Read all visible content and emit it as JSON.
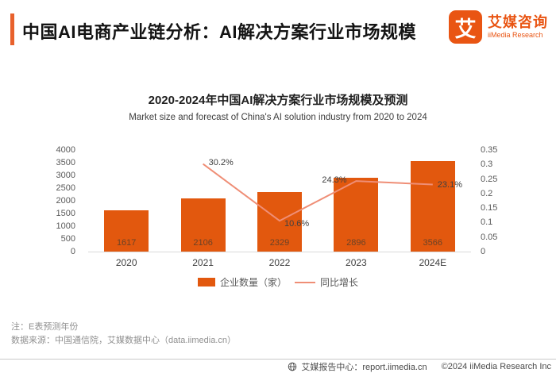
{
  "header": {
    "title": "中国AI电商产业链分析：AI解决方案行业市场规模",
    "logo": {
      "mark": "艾",
      "name_cn": "艾媒咨询",
      "name_en": "iiMedia Research"
    }
  },
  "chart_data": {
    "type": "bar+line combo",
    "title": "2020-2024年中国AI解决方案行业市场规模及预测",
    "subtitle": "Market size and forecast of China's AI solution industry from 2020 to 2024",
    "categories": [
      "2020",
      "2021",
      "2022",
      "2023",
      "2024E"
    ],
    "series": [
      {
        "name": "企业数量（家）",
        "type": "bar",
        "axis": "left",
        "color": "#e2580e",
        "values": [
          1617,
          2106,
          2329,
          2896,
          3566
        ]
      },
      {
        "name": "同比增长",
        "type": "line",
        "axis": "right",
        "color": "#ef8e76",
        "values": [
          null,
          0.302,
          0.106,
          0.243,
          0.231
        ],
        "point_labels": [
          null,
          "30.2%",
          "10.6%",
          "24.3%",
          "23.1%"
        ]
      }
    ],
    "left_axis": {
      "min": 0,
      "max": 4000,
      "step": 500
    },
    "right_axis": {
      "min": 0,
      "max": 0.35,
      "step": 0.05
    },
    "legend_position": "bottom",
    "grid": false
  },
  "notes": {
    "note1": "注：E表预测年份",
    "note2": "数据来源：中国通信院，艾媒数据中心（data.iimedia.cn）"
  },
  "footer": {
    "center_text": "艾媒报告中心：report.iimedia.cn",
    "copyright": "©2024  iiMedia Research Inc"
  },
  "colors": {
    "accent": "#e2580e",
    "line": "#ef8e76",
    "logo": "#e95513"
  }
}
